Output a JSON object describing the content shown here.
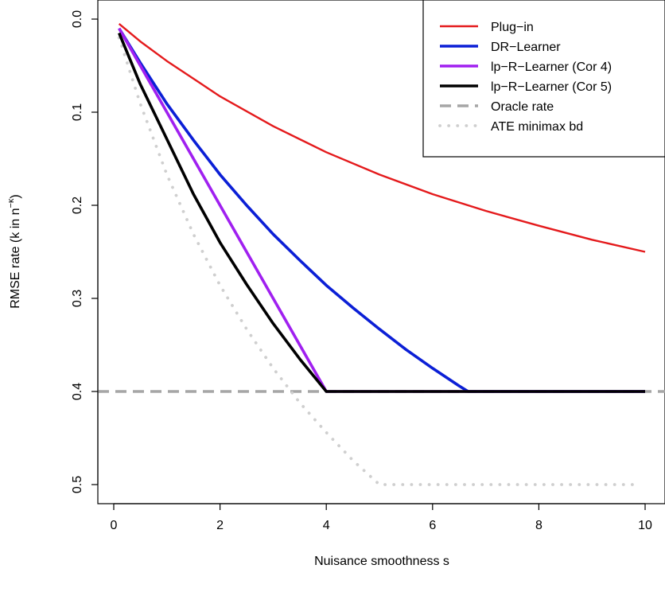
{
  "chart_data": {
    "type": "line",
    "xlabel": "Nuisance smoothness s",
    "ylabel_main": "RMSE rate (k in n",
    "ylabel_sup": "−κ",
    "ylabel_tail": ")",
    "xlim": [
      0,
      10
    ],
    "ylim": [
      0.5,
      0.0
    ],
    "y_reversed": true,
    "x_ticks": [
      0,
      2,
      4,
      6,
      8,
      10
    ],
    "x_tick_labels": [
      "0",
      "2",
      "4",
      "6",
      "8",
      "10"
    ],
    "y_ticks": [
      0.0,
      0.1,
      0.2,
      0.3,
      0.4,
      0.5
    ],
    "y_tick_labels": [
      "0.0",
      "0.1",
      "0.2",
      "0.3",
      "0.4",
      "0.5"
    ],
    "grid": false,
    "legend_position": "top-right",
    "series": [
      {
        "name": "Plug−in",
        "color": "#e41a1c",
        "style": "solid",
        "width": "thin",
        "x": [
          0.1,
          0.5,
          1,
          1.5,
          2,
          3,
          4,
          5,
          6,
          7,
          8,
          9,
          10
        ],
        "y": [
          0.005,
          0.024,
          0.045,
          0.064,
          0.083,
          0.115,
          0.143,
          0.167,
          0.188,
          0.206,
          0.222,
          0.237,
          0.25
        ]
      },
      {
        "name": "DR−Learner",
        "color": "#0b1fd6",
        "style": "solid",
        "width": "thick",
        "x": [
          0.1,
          0.5,
          1,
          1.5,
          2,
          2.5,
          3,
          3.5,
          4,
          4.5,
          5,
          5.5,
          6,
          6.5,
          6.67,
          7,
          8,
          9,
          10
        ],
        "y": [
          0.01,
          0.047,
          0.091,
          0.13,
          0.167,
          0.2,
          0.231,
          0.259,
          0.286,
          0.31,
          0.333,
          0.355,
          0.375,
          0.394,
          0.4,
          0.4,
          0.4,
          0.4,
          0.4
        ]
      },
      {
        "name": "lp−R−Learner (Cor 4)",
        "color": "#a020f0",
        "style": "solid",
        "width": "thick",
        "x": [
          0.1,
          1,
          2,
          3,
          4,
          5,
          6,
          7,
          8,
          9,
          10
        ],
        "y": [
          0.01,
          0.1,
          0.2,
          0.3,
          0.4,
          0.4,
          0.4,
          0.4,
          0.4,
          0.4,
          0.4
        ]
      },
      {
        "name": "lp−R−Learner (Cor 5)",
        "color": "#000000",
        "style": "solid",
        "width": "thick",
        "x": [
          0.1,
          0.5,
          1,
          1.5,
          2,
          2.5,
          3,
          3.5,
          4,
          5,
          6,
          7,
          8,
          9,
          10
        ],
        "y": [
          0.015,
          0.07,
          0.129,
          0.188,
          0.24,
          0.285,
          0.327,
          0.365,
          0.4,
          0.4,
          0.4,
          0.4,
          0.4,
          0.4,
          0.4
        ]
      },
      {
        "name": "Oracle rate",
        "color": "#a6a6a6",
        "style": "dashed",
        "width": "thick",
        "x": [
          -0.3,
          10.5
        ],
        "y": [
          0.4,
          0.4
        ]
      },
      {
        "name": "ATE minimax bd",
        "color": "#cfcfcf",
        "style": "dotted",
        "width": "thick",
        "x": [
          0.1,
          0.5,
          1,
          1.5,
          2,
          2.5,
          3,
          3.5,
          4,
          4.5,
          5,
          6,
          7,
          8,
          9,
          9.8
        ],
        "y": [
          0.02,
          0.091,
          0.167,
          0.231,
          0.286,
          0.333,
          0.375,
          0.412,
          0.444,
          0.474,
          0.5,
          0.5,
          0.5,
          0.5,
          0.5,
          0.5
        ]
      }
    ]
  }
}
